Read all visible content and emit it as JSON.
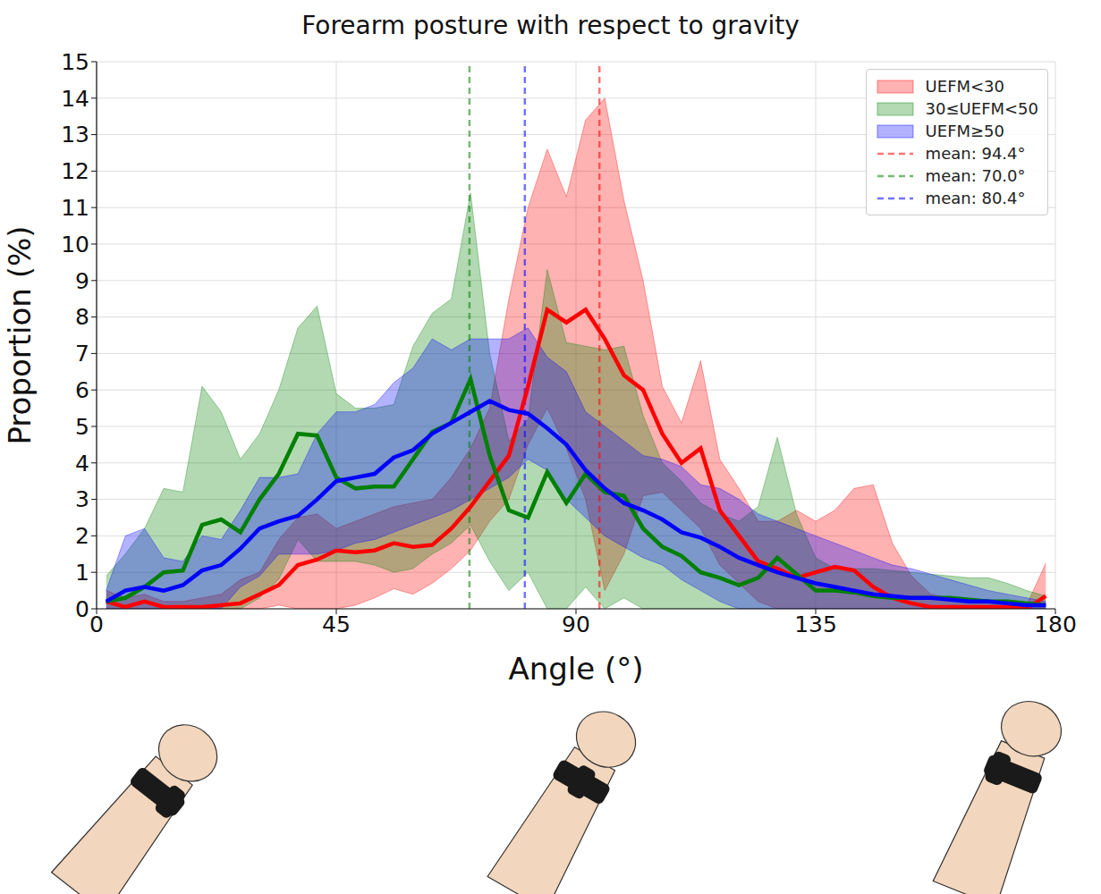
{
  "chart_data": {
    "type": "line",
    "title": "Forearm posture with respect to gravity",
    "x_label": "Angle (°)",
    "y_label": "Proportion (%)",
    "xlim": [
      0,
      180
    ],
    "xticks": [
      0,
      45,
      90,
      135,
      180
    ],
    "ylim": [
      0,
      15
    ],
    "yticks": [
      0,
      1,
      2,
      3,
      4,
      5,
      6,
      7,
      8,
      9,
      10,
      11,
      12,
      13,
      14,
      15
    ],
    "grid": true,
    "legend": "upper right",
    "x": [
      1.8,
      5.4,
      9,
      12.6,
      16.2,
      19.8,
      23.4,
      27,
      30.6,
      34.2,
      37.8,
      41.4,
      45,
      48.6,
      52.2,
      55.8,
      59.4,
      63,
      66.6,
      70.2,
      73.8,
      77.4,
      81,
      84.6,
      88.2,
      91.8,
      95.4,
      99,
      102.6,
      106.2,
      109.8,
      113.4,
      117,
      120.6,
      124.2,
      127.8,
      131.4,
      135,
      138.6,
      142.2,
      145.8,
      149.4,
      153,
      156.6,
      160.2,
      163.8,
      167.4,
      171,
      174.6,
      178.2
    ],
    "series": [
      {
        "name": "UEFM<30",
        "color": "#ff0000",
        "mean": {
          "value": 94.4,
          "label": "mean: 94.4°"
        },
        "values": [
          0.2,
          0.05,
          0.2,
          0.05,
          0.05,
          0.05,
          0.1,
          0.15,
          0.4,
          0.65,
          1.2,
          1.35,
          1.6,
          1.55,
          1.6,
          1.8,
          1.7,
          1.75,
          2.2,
          2.8,
          3.5,
          4.2,
          6.1,
          8.2,
          7.85,
          8.2,
          7.4,
          6.4,
          6.0,
          4.8,
          4.0,
          4.4,
          2.7,
          2.0,
          1.3,
          1.1,
          0.85,
          1.0,
          1.15,
          1.05,
          0.6,
          0.3,
          0.15,
          0.05,
          0.05,
          0.05,
          0.05,
          0.05,
          0.0,
          0.35
        ],
        "lower": [
          0,
          0,
          0,
          0,
          0,
          0,
          0,
          0,
          0,
          0.1,
          0,
          0,
          0,
          0.1,
          0.3,
          0.55,
          0.4,
          0.7,
          1.1,
          1.6,
          2.4,
          3.0,
          4.5,
          5.5,
          4.4,
          3.0,
          0.5,
          1.5,
          3.1,
          3.2,
          2.7,
          2.2,
          1.2,
          0.7,
          0.2,
          0,
          0,
          0,
          0,
          0,
          0,
          0,
          0,
          0,
          0,
          0,
          0,
          0,
          0,
          0
        ],
        "upper": [
          0.5,
          0.3,
          0.4,
          0.2,
          0.2,
          0.3,
          0.4,
          0.8,
          1.0,
          1.9,
          2.5,
          2.6,
          2.2,
          2.4,
          2.6,
          2.8,
          2.9,
          3.0,
          3.6,
          4.4,
          5.5,
          8.5,
          11.0,
          12.6,
          11.3,
          13.4,
          14.0,
          11.2,
          9.0,
          6.1,
          5.1,
          6.8,
          4.1,
          3.3,
          2.4,
          2.4,
          2.7,
          2.4,
          2.7,
          3.3,
          3.4,
          1.8,
          0.9,
          0.4,
          0.3,
          0.2,
          0.2,
          0.2,
          0.1,
          1.25
        ]
      },
      {
        "name": "30≤UEFM<50",
        "color": "#008000",
        "mean": {
          "value": 70.0,
          "label": "mean: 70.0°"
        },
        "values": [
          0.2,
          0.3,
          0.6,
          1.0,
          1.05,
          2.3,
          2.45,
          2.1,
          3.0,
          3.7,
          4.8,
          4.75,
          3.6,
          3.3,
          3.35,
          3.35,
          4.1,
          4.85,
          5.1,
          6.3,
          4.2,
          2.7,
          2.5,
          3.75,
          2.9,
          3.7,
          3.2,
          3.1,
          2.2,
          1.7,
          1.45,
          1.0,
          0.85,
          0.65,
          0.85,
          1.4,
          0.95,
          0.5,
          0.5,
          0.45,
          0.35,
          0.3,
          0.3,
          0.3,
          0.3,
          0.25,
          0.2,
          0.2,
          0.15,
          0.1
        ],
        "lower": [
          0,
          0,
          0,
          0,
          0,
          0,
          0,
          0,
          0.3,
          0.8,
          1.9,
          1.3,
          1.3,
          1.3,
          1.2,
          1.0,
          1.1,
          1.5,
          1.8,
          2.3,
          1.3,
          0.5,
          1.0,
          0,
          0,
          0.6,
          0,
          0.3,
          0,
          0,
          0,
          0,
          0,
          0,
          0,
          0,
          0,
          0,
          0,
          0,
          0,
          0,
          0,
          0,
          0,
          0,
          0,
          0,
          0,
          0
        ],
        "upper": [
          0.9,
          1.5,
          2.2,
          3.3,
          3.2,
          6.1,
          5.4,
          4.1,
          4.8,
          6.0,
          7.7,
          8.3,
          5.9,
          5.5,
          5.5,
          5.6,
          7.2,
          8.1,
          8.5,
          11.4,
          7.0,
          4.6,
          5.2,
          9.3,
          7.3,
          7.2,
          7.1,
          7.2,
          5.3,
          4.0,
          3.5,
          2.9,
          2.6,
          2.4,
          2.8,
          4.7,
          2.6,
          1.4,
          1.1,
          1.1,
          1.1,
          1.05,
          1.0,
          0.95,
          0.9,
          0.85,
          0.85,
          0.7,
          0.5,
          0.35
        ]
      },
      {
        "name": "UEFM≥50",
        "color": "#0000ff",
        "mean": {
          "value": 80.4,
          "label": "mean: 80.4°"
        },
        "values": [
          0.2,
          0.5,
          0.6,
          0.5,
          0.65,
          1.05,
          1.2,
          1.65,
          2.2,
          2.4,
          2.55,
          3.0,
          3.5,
          3.6,
          3.7,
          4.15,
          4.35,
          4.8,
          5.1,
          5.4,
          5.7,
          5.45,
          5.35,
          4.95,
          4.5,
          3.8,
          3.3,
          2.9,
          2.7,
          2.45,
          2.1,
          1.95,
          1.7,
          1.4,
          1.2,
          1.0,
          0.85,
          0.7,
          0.6,
          0.5,
          0.4,
          0.35,
          0.3,
          0.3,
          0.25,
          0.2,
          0.2,
          0.15,
          0.1,
          0.1
        ],
        "lower": [
          0,
          0,
          0,
          0,
          0,
          0,
          0,
          0.6,
          0.9,
          1.5,
          1.5,
          1.5,
          1.6,
          1.8,
          1.9,
          2.1,
          2.3,
          2.5,
          2.7,
          3.0,
          3.3,
          3.6,
          4.1,
          3.8,
          3.0,
          2.5,
          2.0,
          1.7,
          1.4,
          1.2,
          0.8,
          0.5,
          0.2,
          0,
          0,
          0,
          0,
          0,
          0,
          0,
          0,
          0,
          0,
          0,
          0,
          0,
          0,
          0,
          0,
          0
        ],
        "upper": [
          0.5,
          2.0,
          2.2,
          1.4,
          1.3,
          2.0,
          1.9,
          2.7,
          3.6,
          3.6,
          3.7,
          4.8,
          5.4,
          5.4,
          5.6,
          6.2,
          6.6,
          7.4,
          7.1,
          7.4,
          7.4,
          7.4,
          7.7,
          6.9,
          6.5,
          5.4,
          5.0,
          4.6,
          4.2,
          4.1,
          3.9,
          3.4,
          3.3,
          3.0,
          2.6,
          2.4,
          2.2,
          2.0,
          1.8,
          1.6,
          1.4,
          1.2,
          1.1,
          0.95,
          0.8,
          0.65,
          0.5,
          0.4,
          0.3,
          0.2
        ]
      }
    ]
  }
}
